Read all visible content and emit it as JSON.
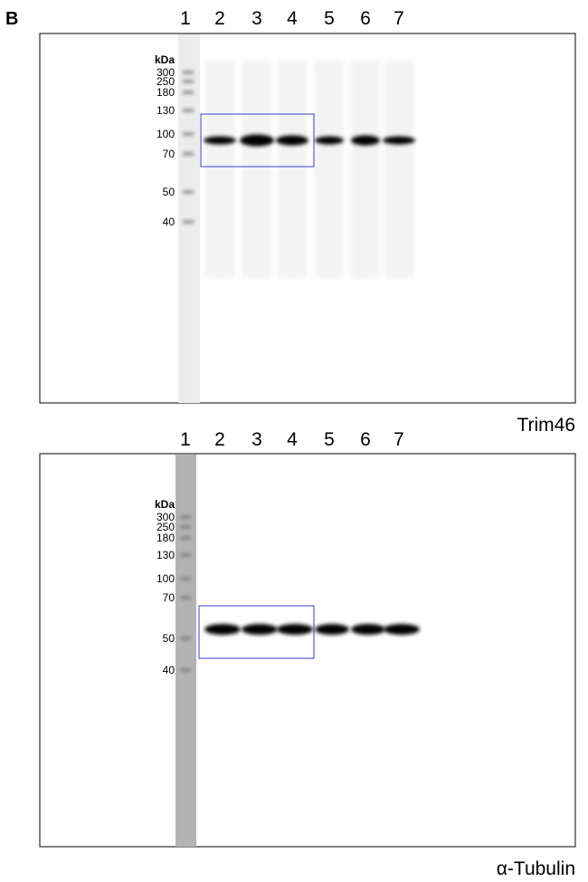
{
  "panel_label": "B",
  "blots": [
    {
      "lanes": [
        "1",
        "2",
        "3",
        "4",
        "5",
        "6",
        "7"
      ],
      "unit": "kDa",
      "markers": [
        "300",
        "250",
        "180",
        "130",
        "100",
        "70",
        "50",
        "40"
      ],
      "name": "Trim46"
    },
    {
      "lanes": [
        "1",
        "2",
        "3",
        "4",
        "5",
        "6",
        "7"
      ],
      "unit": "kDa",
      "markers": [
        "300",
        "250",
        "180",
        "130",
        "100",
        "70",
        "50",
        "40"
      ],
      "name": "α-Tubulin"
    }
  ]
}
